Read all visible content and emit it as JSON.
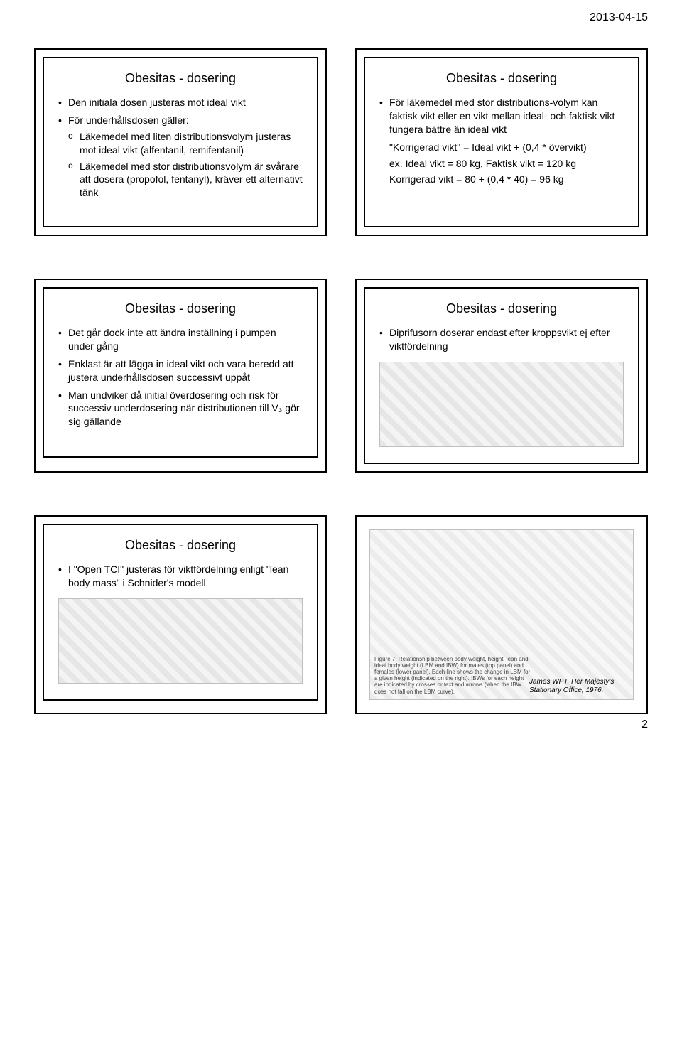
{
  "date_header": "2013-04-15",
  "page_number": "2",
  "common_title": "Obesitas - dosering",
  "slide1": {
    "b1": "Den initiala dosen justeras mot ideal vikt",
    "b2": "För underhållsdosen gäller:",
    "s1": "Läkemedel med liten distributionsvolym justeras mot ideal vikt (alfentanil, remifentanil)",
    "s2": "Läkemedel med stor distributionsvolym är svårare att dosera (propofol, fentanyl), kräver ett alternativt tänk"
  },
  "slide2": {
    "b1": "För läkemedel med stor distributions-volym kan faktisk vikt eller en vikt mellan ideal- och faktisk vikt fungera bättre än ideal vikt",
    "l1": "\"Korrigerad vikt\" = Ideal vikt + (0,4 * övervikt)",
    "l2": "ex. Ideal vikt = 80 kg, Faktisk vikt = 120 kg",
    "l3": "Korrigerad vikt = 80 + (0,4 * 40) = 96 kg"
  },
  "slide3": {
    "b1": "Det går dock inte att ändra inställning i pumpen under gång",
    "b2": "Enklast är att lägga in ideal vikt och vara beredd att justera underhållsdosen successivt uppåt",
    "b3": "Man undviker då initial överdosering och risk för successiv underdosering när distributionen till V₃ gör sig gällande"
  },
  "slide4": {
    "b1": "Diprifusorn doserar endast efter kroppsvikt ej efter viktfördelning"
  },
  "slide5": {
    "b1": "I \"Open TCI\" justeras för viktfördelning enligt \"lean body mass\" i Schnider's modell"
  },
  "slide6": {
    "figure_caption": "Figure 7: Relationship between body weight, height, lean and ideal body weight (LBM and IBW) for males (top panel) and females (lower panel). Each line shows the change in LBM for a given height (indicated on the right). IBWs for each height are indicated by crosses or text and arrows (when the IBW does not fall on the LBM curve).",
    "credit": "James WPT. Her Majesty's Stationary Office, 1976."
  }
}
